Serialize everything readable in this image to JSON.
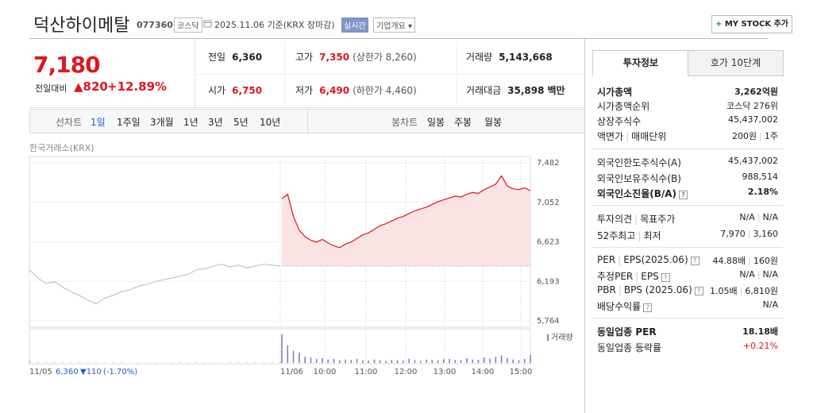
{
  "header": {
    "name": "덕산하이메탈",
    "code": "077360",
    "market": "코스닥",
    "date": "2025.11.06 기준(KRX 장마감)",
    "realtime": "실시간",
    "company_info": "기업개요",
    "my_stock": "MY STOCK 추가"
  },
  "price": {
    "current": "7,180",
    "change_label": "전일대비",
    "change": "820",
    "change_rate": "+12.89%"
  },
  "summary": [
    [
      {
        "label": "전일",
        "value": "6,360"
      },
      {
        "label": "고가",
        "value": "7,350",
        "extra": "(상한가 8,260)"
      },
      {
        "label": "거래량",
        "value": "5,143,668"
      }
    ],
    [
      {
        "label": "시가",
        "value": "6,750"
      },
      {
        "label": "저가",
        "value": "6,490",
        "extra": "(하한가 4,460)"
      },
      {
        "label": "거래대금",
        "value": "35,898",
        "extra": "백만"
      }
    ]
  ],
  "periods": {
    "line_label": "선차트",
    "line": [
      "1일",
      "1주일",
      "3개월",
      "1년",
      "3년",
      "5년",
      "10년"
    ],
    "candle_label": "봉차트",
    "candle": [
      "일봉",
      "주봉",
      "월봉"
    ]
  },
  "chart": {
    "source": "한국거래소(KRX)",
    "ylim": [
      5764,
      7482
    ],
    "yticks": [
      {
        "value": 7482,
        "label": "7,482"
      },
      {
        "value": 7052,
        "label": "7,052"
      },
      {
        "value": 6623,
        "label": "6,623"
      },
      {
        "value": 6193,
        "label": "6,193"
      },
      {
        "value": 5764,
        "label": "5,764"
      }
    ],
    "volume_label": "거래량",
    "prev_day": {
      "date": "11/05",
      "close": "6,360",
      "change": "▼110",
      "change_rate": "(-1.70%)",
      "values": [
        6320,
        6230,
        6170,
        6190,
        6130,
        6080,
        6040,
        5990,
        5950,
        6010,
        6040,
        6080,
        6100,
        6140,
        6160,
        6190,
        6210,
        6230,
        6250,
        6270,
        6320,
        6330,
        6360,
        6380,
        6350,
        6370,
        6340,
        6360,
        6380,
        6370,
        6360
      ],
      "volume": [
        30,
        15,
        10,
        12,
        10,
        8,
        10,
        12,
        9,
        8,
        10,
        8,
        7,
        9,
        8,
        10,
        7,
        8,
        9,
        8,
        10,
        9,
        8,
        7,
        9,
        8,
        10,
        9,
        8,
        12,
        20
      ]
    },
    "today": {
      "date": "11/06",
      "values": [
        7090,
        7140,
        6900,
        6750,
        6680,
        6640,
        6620,
        6650,
        6610,
        6580,
        6560,
        6600,
        6620,
        6660,
        6700,
        6720,
        6760,
        6800,
        6820,
        6850,
        6880,
        6900,
        6930,
        6960,
        6980,
        7000,
        7030,
        7060,
        7080,
        7100,
        7120,
        7110,
        7140,
        7160,
        7150,
        7190,
        7220,
        7250,
        7340,
        7230,
        7200,
        7190,
        7210,
        7180
      ],
      "volume": [
        420,
        260,
        180,
        150,
        90,
        80,
        60,
        70,
        50,
        60,
        40,
        50,
        45,
        60,
        40,
        35,
        50,
        40,
        30,
        45,
        40,
        35,
        60,
        40,
        30,
        50,
        45,
        40,
        55,
        60,
        45,
        40,
        70,
        50,
        45,
        80,
        60,
        90,
        110,
        70,
        50,
        40,
        60,
        120
      ]
    },
    "time_ticks": [
      "10:00",
      "11:00",
      "12:00",
      "13:00",
      "14:00",
      "15:00"
    ]
  },
  "tabs": [
    "투자정보",
    "호가 10단계"
  ],
  "info": [
    [
      {
        "label": [
          "시가총액"
        ],
        "value": [
          "3,262억원"
        ],
        "bold": true
      },
      {
        "label": [
          "시가총액순위"
        ],
        "value": [
          "코스닥 276위"
        ]
      },
      {
        "label": [
          "상장주식수"
        ],
        "value": [
          "45,437,002"
        ]
      },
      {
        "label": [
          "액면가",
          "매매단위"
        ],
        "value": [
          "200원",
          "1주"
        ]
      }
    ],
    [
      {
        "label": [
          "외국인한도주식수(A)"
        ],
        "value": [
          "45,437,002"
        ]
      },
      {
        "label": [
          "외국인보유주식수(B)"
        ],
        "value": [
          "988,514"
        ]
      },
      {
        "label": [
          "외국인소진율(B/A)"
        ],
        "value": [
          "2.18%"
        ],
        "bold": true,
        "help": true
      }
    ],
    [
      {
        "label": [
          "투자의견",
          "목표주가"
        ],
        "value": [
          "N/A",
          "N/A"
        ]
      },
      {
        "label": [
          "52주최고",
          "최저"
        ],
        "value": [
          "7,970",
          "3,160"
        ]
      }
    ],
    [
      {
        "label": [
          "PER",
          "EPS(2025.06)"
        ],
        "value": [
          "44.88배",
          "160원"
        ],
        "help": true
      },
      {
        "label": [
          "추정PER",
          "EPS"
        ],
        "value": [
          "N/A",
          "N/A"
        ],
        "help": true
      },
      {
        "label": [
          "PBR",
          "BPS (2025.06)"
        ],
        "value": [
          "1.05배",
          "6,810원"
        ],
        "help": true
      },
      {
        "label": [
          "배당수익률"
        ],
        "value": [
          "N/A"
        ],
        "help": true
      }
    ],
    [
      {
        "label": [
          "동일업종 PER"
        ],
        "value": [
          "18.18배"
        ],
        "bold": true
      },
      {
        "label": [
          "동일업종 등락률"
        ],
        "value": [
          "+0.21%"
        ],
        "red": true
      }
    ]
  ]
}
